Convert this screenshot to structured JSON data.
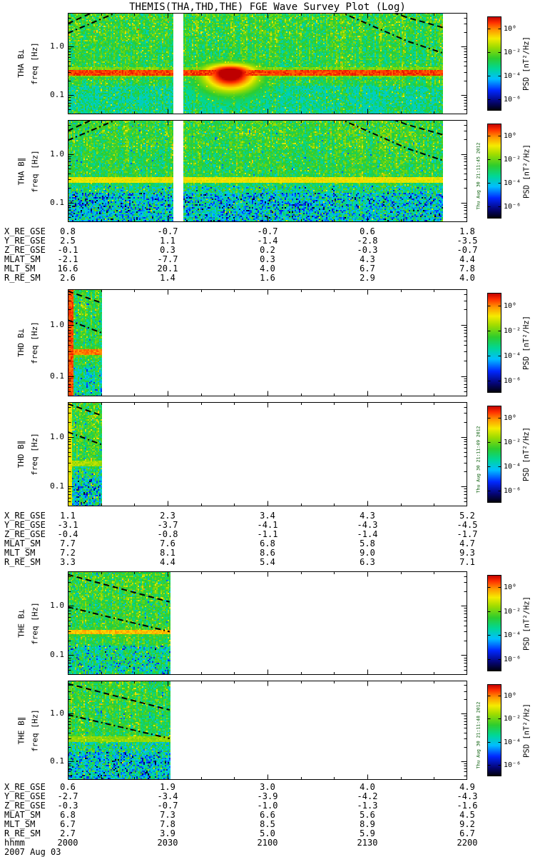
{
  "title": "THEMIS(THA,THD,THE) FGE Wave Survey Plot (Log)",
  "freq_axis": {
    "label": "freq [Hz]",
    "tick_labels": [
      "1.0",
      "0.1"
    ],
    "tick_values_hz": [
      1.0,
      0.1
    ],
    "fmin_hz": 0.04,
    "fmax_hz": 5.0,
    "scale": "log"
  },
  "colorbar": {
    "label": "PSD [nT²/Hz]",
    "tick_labels": [
      "10⁰",
      "10⁻²",
      "10⁻⁴",
      "10⁻⁶"
    ],
    "colormap": "rainbow (black-blue-cyan-green-yellow-orange-red)"
  },
  "time_axis": {
    "label": "hhmm",
    "tick_labels": [
      "2000",
      "2030",
      "2100",
      "2130",
      "2200"
    ],
    "date": "2007 Aug 03"
  },
  "chart_data": {
    "type": "heatmap",
    "subtype": "magnetic-wave-power-spectrogram",
    "x_axis": {
      "label": "hhmm",
      "ticks": [
        "2000",
        "2030",
        "2100",
        "2130",
        "2200"
      ],
      "date": "2007 Aug 03"
    },
    "y_axis": {
      "label": "freq [Hz]",
      "scale": "log",
      "range_hz": [
        0.04,
        5.0
      ],
      "major_ticks_hz": [
        1.0,
        0.1
      ]
    },
    "z_axis": {
      "label": "PSD [nT²/Hz]",
      "scale": "log",
      "tick_labels": [
        "10⁰",
        "10⁻²",
        "10⁻⁴",
        "10⁻⁶"
      ]
    },
    "groups": [
      {
        "probe": "THA",
        "timestamp": "Thu Aug 30 21:11:45 2012",
        "panels": [
          {
            "ylabel": "THA B⊥",
            "data_extent": [
              0.0,
              0.94
            ],
            "data_gaps": [
              [
                0.264,
                0.289
              ]
            ],
            "emission_band_hz": 0.3,
            "band_strength": 0.97,
            "blob": {
              "t_center": 0.405,
              "f_center_hz": 0.3,
              "t_sigma": 0.055
            },
            "overlay_dashed_hz": [
              [
                0,
                3.0
              ],
              [
                0.06,
                5.0
              ],
              [
                0.2,
                18
              ],
              [
                0.5,
                45
              ],
              [
                0.75,
                8
              ],
              [
                0.85,
                4.0
              ],
              [
                1.0,
                1.8
              ]
            ],
            "overlay_dashdot_hz": [
              [
                0,
                1.9
              ],
              [
                0.12,
                5.0
              ],
              [
                0.3,
                14
              ],
              [
                0.5,
                20
              ],
              [
                0.7,
                4.5
              ],
              [
                0.85,
                1.3
              ],
              [
                1.0,
                0.5
              ]
            ],
            "features": [
              "continuous emission band near 0.3 Hz",
              "intense red wave burst ~2037-2102 UT",
              "vertical data gap ~2032 UT"
            ]
          },
          {
            "ylabel": "THA B∥",
            "data_extent": [
              0.0,
              0.94
            ],
            "data_gaps": [
              [
                0.264,
                0.289
              ]
            ],
            "emission_band_hz": 0.3,
            "band_strength": 0.8,
            "bluer_bottom": true,
            "overlay_dashed_hz": [
              [
                0,
                3.0
              ],
              [
                0.06,
                5.0
              ],
              [
                0.2,
                18
              ],
              [
                0.5,
                45
              ],
              [
                0.75,
                8
              ],
              [
                0.85,
                4.0
              ],
              [
                1.0,
                1.8
              ]
            ],
            "overlay_dashdot_hz": [
              [
                0,
                1.9
              ],
              [
                0.12,
                5.0
              ],
              [
                0.3,
                14
              ],
              [
                0.5,
                20
              ],
              [
                0.7,
                4.5
              ],
              [
                0.85,
                1.3
              ],
              [
                1.0,
                0.5
              ]
            ],
            "features": [
              "yellow emission band near 0.3 Hz",
              "blue low-power region below 0.2 Hz"
            ]
          }
        ],
        "ephemeris": {
          "rows": [
            {
              "label": "X_RE_GSE",
              "values": [
                "0.8",
                "-0.7",
                "-0.7",
                "0.6",
                "1.8"
              ]
            },
            {
              "label": "Y_RE_GSE",
              "values": [
                "2.5",
                "1.1",
                "-1.4",
                "-2.8",
                "-3.5"
              ]
            },
            {
              "label": "Z_RE_GSE",
              "values": [
                "-0.1",
                "0.3",
                "0.2",
                "-0.3",
                "-0.7"
              ]
            },
            {
              "label": "MLAT_SM",
              "values": [
                "-2.1",
                "-7.7",
                "0.3",
                "4.3",
                "4.4"
              ]
            },
            {
              "label": "MLT_SM",
              "values": [
                "16.6",
                "20.1",
                "4.0",
                "6.7",
                "7.8"
              ]
            },
            {
              "label": "R_RE_SM",
              "values": [
                "2.6",
                "1.4",
                "1.6",
                "2.9",
                "4.0"
              ]
            }
          ]
        }
      },
      {
        "probe": "THD",
        "timestamp": "Thu Aug 30 21:11:49 2012",
        "panels": [
          {
            "ylabel": "THD B⊥",
            "data_extent": [
              0.0,
              0.085
            ],
            "edge_stripe": {
              "t1": 0.012,
              "v": 0.96
            },
            "emission_band_hz": 0.3,
            "band_strength": 0.92,
            "overlay_dashed_hz": [
              [
                0,
                4.6
              ],
              [
                0.085,
                2.7
              ]
            ],
            "overlay_dashdot_hz": [
              [
                0,
                1.25
              ],
              [
                0.085,
                0.7
              ]
            ],
            "features": [
              "data only 2000-2010 UT",
              "red stripe at start of interval",
              "orange band near 0.3 Hz"
            ]
          },
          {
            "ylabel": "THD B∥",
            "data_extent": [
              0.0,
              0.085
            ],
            "edge_stripe": {
              "t1": 0.01,
              "v": 0.8
            },
            "emission_band_hz": 0.3,
            "band_strength": 0.72,
            "bluer_bottom": true,
            "overlay_dashed_hz": [
              [
                0,
                4.6
              ],
              [
                0.085,
                2.7
              ]
            ],
            "overlay_dashdot_hz": [
              [
                0,
                1.25
              ],
              [
                0.085,
                0.7
              ]
            ],
            "features": [
              "data only 2000-2010 UT",
              "blue low-power region below 0.2 Hz"
            ]
          }
        ],
        "ephemeris": {
          "rows": [
            {
              "label": "X_RE_GSE",
              "values": [
                "1.1",
                "2.3",
                "3.4",
                "4.3",
                "5.2"
              ]
            },
            {
              "label": "Y_RE_GSE",
              "values": [
                "-3.1",
                "-3.7",
                "-4.1",
                "-4.3",
                "-4.5"
              ]
            },
            {
              "label": "Z_RE_GSE",
              "values": [
                "-0.4",
                "-0.8",
                "-1.1",
                "-1.4",
                "-1.7"
              ]
            },
            {
              "label": "MLAT_SM",
              "values": [
                "7.7",
                "7.6",
                "6.8",
                "5.8",
                "4.7"
              ]
            },
            {
              "label": "MLT_SM",
              "values": [
                "7.2",
                "8.1",
                "8.6",
                "9.0",
                "9.3"
              ]
            },
            {
              "label": "R_RE_SM",
              "values": [
                "3.3",
                "4.4",
                "5.4",
                "6.3",
                "7.1"
              ]
            }
          ]
        }
      },
      {
        "probe": "THE",
        "timestamp": "Thu Aug 30 21:11:48 2012",
        "panels": [
          {
            "ylabel": "THE B⊥",
            "data_extent": [
              0.0,
              0.255
            ],
            "emission_band_hz": 0.3,
            "band_strength": 0.86,
            "overlay_dashed_hz": [
              [
                0,
                4.3
              ],
              [
                0.255,
                1.2
              ]
            ],
            "overlay_dashdot_hz": [
              [
                0,
                0.95
              ],
              [
                0.255,
                0.3
              ]
            ],
            "features": [
              "data only 2000-2030 UT",
              "orange band near 0.3 Hz"
            ]
          },
          {
            "ylabel": "THE B∥",
            "data_extent": [
              0.0,
              0.255
            ],
            "emission_band_hz": 0.3,
            "band_strength": 0.7,
            "bluer_bottom": true,
            "overlay_dashed_hz": [
              [
                0,
                4.3
              ],
              [
                0.255,
                1.2
              ]
            ],
            "overlay_dashdot_hz": [
              [
                0,
                0.95
              ],
              [
                0.255,
                0.3
              ]
            ],
            "features": [
              "data only 2000-2030 UT",
              "blue low-power region below 0.2 Hz"
            ]
          }
        ],
        "ephemeris": {
          "rows": [
            {
              "label": "X_RE_GSE",
              "values": [
                "0.6",
                "1.9",
                "3.0",
                "4.0",
                "4.9"
              ]
            },
            {
              "label": "Y_RE_GSE",
              "values": [
                "-2.7",
                "-3.4",
                "-3.9",
                "-4.2",
                "-4.3"
              ]
            },
            {
              "label": "Z_RE_GSE",
              "values": [
                "-0.3",
                "-0.7",
                "-1.0",
                "-1.3",
                "-1.6"
              ]
            },
            {
              "label": "MLAT_SM",
              "values": [
                "6.8",
                "7.3",
                "6.6",
                "5.6",
                "4.5"
              ]
            },
            {
              "label": "MLT_SM",
              "values": [
                "6.7",
                "7.8",
                "8.5",
                "8.9",
                "9.2"
              ]
            },
            {
              "label": "R_RE_SM",
              "values": [
                "2.7",
                "3.9",
                "5.0",
                "5.9",
                "6.7"
              ]
            }
          ]
        }
      }
    ]
  }
}
